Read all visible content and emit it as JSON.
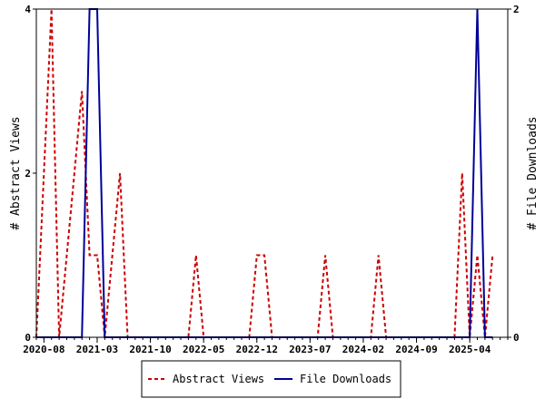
{
  "chart_data": {
    "type": "line",
    "title": "",
    "xlabel": "",
    "ylabel": "# Abstract Views",
    "y2label": "# File Downloads",
    "ylim": [
      0,
      4
    ],
    "y2lim": [
      0,
      2
    ],
    "yticks": [
      "0",
      "2",
      "4"
    ],
    "y2ticks": [
      "0",
      "2"
    ],
    "xlim": [
      "2020-07",
      "2025-09"
    ],
    "xticks": [
      "2020-08",
      "2021-03",
      "2021-10",
      "2022-05",
      "2022-12",
      "2023-07",
      "2024-02",
      "2024-09",
      "2025-04"
    ],
    "grid": false,
    "legend_position": "bottom",
    "colors": {
      "abstract_views": "#cc0000",
      "file_downloads": "#000099"
    },
    "series": [
      {
        "name": "Abstract Views",
        "axis": "left",
        "style": "dashed",
        "points": [
          [
            "2020-07",
            0
          ],
          [
            "2020-09",
            4
          ],
          [
            "2020-10",
            0
          ],
          [
            "2020-11",
            1
          ],
          [
            "2020-12",
            2
          ],
          [
            "2021-01",
            3
          ],
          [
            "2021-02",
            1
          ],
          [
            "2021-03",
            1
          ],
          [
            "2021-04",
            0
          ],
          [
            "2021-05",
            1
          ],
          [
            "2021-06",
            2
          ],
          [
            "2021-07",
            0
          ],
          [
            "2022-03",
            0
          ],
          [
            "2022-04",
            1
          ],
          [
            "2022-05",
            0
          ],
          [
            "2022-11",
            0
          ],
          [
            "2022-12",
            1
          ],
          [
            "2023-01",
            1
          ],
          [
            "2023-02",
            0
          ],
          [
            "2023-08",
            0
          ],
          [
            "2023-09",
            1
          ],
          [
            "2023-10",
            0
          ],
          [
            "2024-03",
            0
          ],
          [
            "2024-04",
            1
          ],
          [
            "2024-05",
            0
          ],
          [
            "2025-02",
            0
          ],
          [
            "2025-03",
            2
          ],
          [
            "2025-04",
            0
          ],
          [
            "2025-05",
            1
          ],
          [
            "2025-06",
            0
          ],
          [
            "2025-07",
            1
          ]
        ]
      },
      {
        "name": "File Downloads",
        "axis": "right",
        "style": "solid",
        "points": [
          [
            "2020-07",
            0
          ],
          [
            "2021-01",
            0
          ],
          [
            "2021-02",
            2
          ],
          [
            "2021-03",
            2
          ],
          [
            "2021-04",
            0
          ],
          [
            "2025-04",
            0
          ],
          [
            "2025-05",
            2
          ],
          [
            "2025-06",
            0
          ],
          [
            "2025-07",
            0
          ]
        ]
      }
    ]
  }
}
